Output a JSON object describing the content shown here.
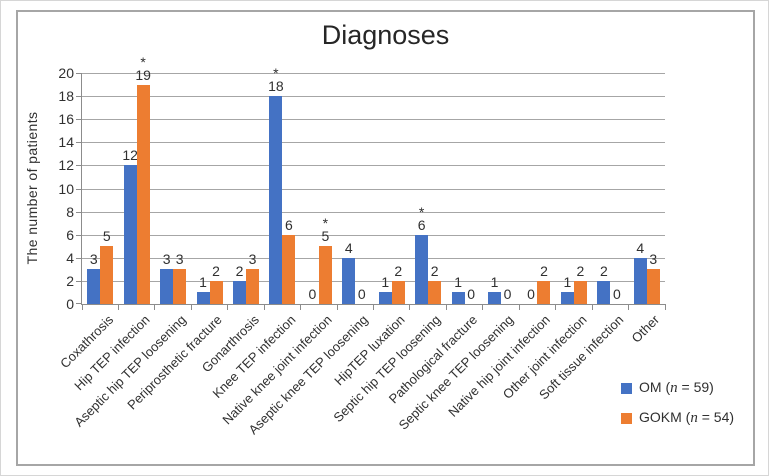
{
  "chart_data": {
    "type": "bar",
    "title": "Diagnoses",
    "ylabel": "The number of patients",
    "xlabel": "",
    "ylim": [
      0,
      20
    ],
    "ytick_step": 2,
    "grid": true,
    "legend_position": "bottom-right",
    "annotation_symbol": "*",
    "categories": [
      "Coxathrosis",
      "Hip TEP infection",
      "Aseptic hip TEP loosening",
      "Periprosthetic fracture",
      "Gonarthrosis",
      "Knee TEP infection",
      "Native knee joint infection",
      "Aseptic knee TEP loosening",
      "HipTEP luxation",
      "Septic hip TEP loosening",
      "Pathological fracture",
      "Septic knee TEP loosening",
      "Native hip joint infection",
      "Other joint infection",
      "Soft tissue infection",
      "Other"
    ],
    "series": [
      {
        "name": "OM",
        "n": 59,
        "legend_label": "OM (n = 59)",
        "color": "#4472C4",
        "values": [
          3,
          12,
          3,
          1,
          2,
          18,
          0,
          4,
          1,
          6,
          1,
          1,
          0,
          1,
          2,
          4
        ],
        "star_indices": [
          5,
          9
        ]
      },
      {
        "name": "GOKM",
        "n": 54,
        "legend_label": "GOKM (n = 54)",
        "color": "#ED7D31",
        "values": [
          5,
          19,
          3,
          2,
          3,
          6,
          5,
          0,
          2,
          2,
          0,
          0,
          2,
          2,
          0,
          3
        ],
        "star_indices": [
          1,
          6
        ]
      }
    ]
  },
  "colors": {
    "series_blue": "#4472C4",
    "series_orange": "#ED7D31",
    "gridline": "#a6a6a6",
    "axis": "#8c8c8c",
    "text": "#303030",
    "frame_border": "#a6a6a6"
  }
}
